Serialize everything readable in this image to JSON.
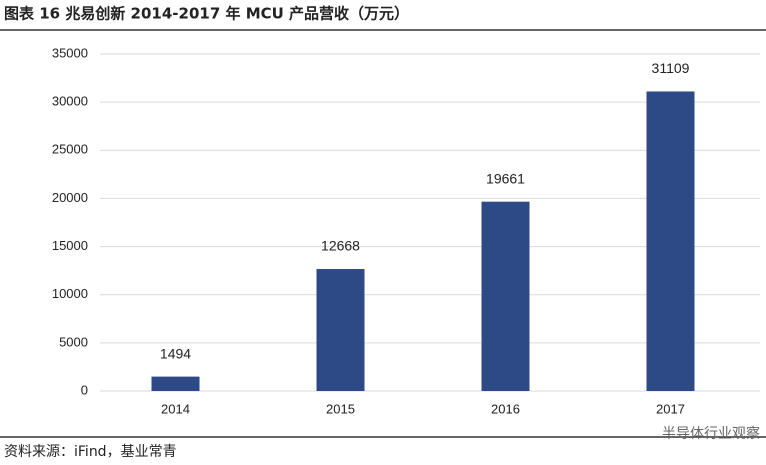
{
  "chart_data": {
    "type": "bar",
    "title": "图表 16 兆易创新 2014-2017 年 MCU 产品营收（万元）",
    "categories": [
      "2014",
      "2015",
      "2016",
      "2017"
    ],
    "values": [
      1494,
      12668,
      19661,
      31109
    ],
    "color": "#2e4a86",
    "ylim": [
      0,
      35000
    ],
    "yticks": [
      0,
      5000,
      10000,
      15000,
      20000,
      25000,
      30000,
      35000
    ],
    "grid": true,
    "source": "资料来源：iFind，基业常青",
    "watermark": "半导体行业观察"
  }
}
